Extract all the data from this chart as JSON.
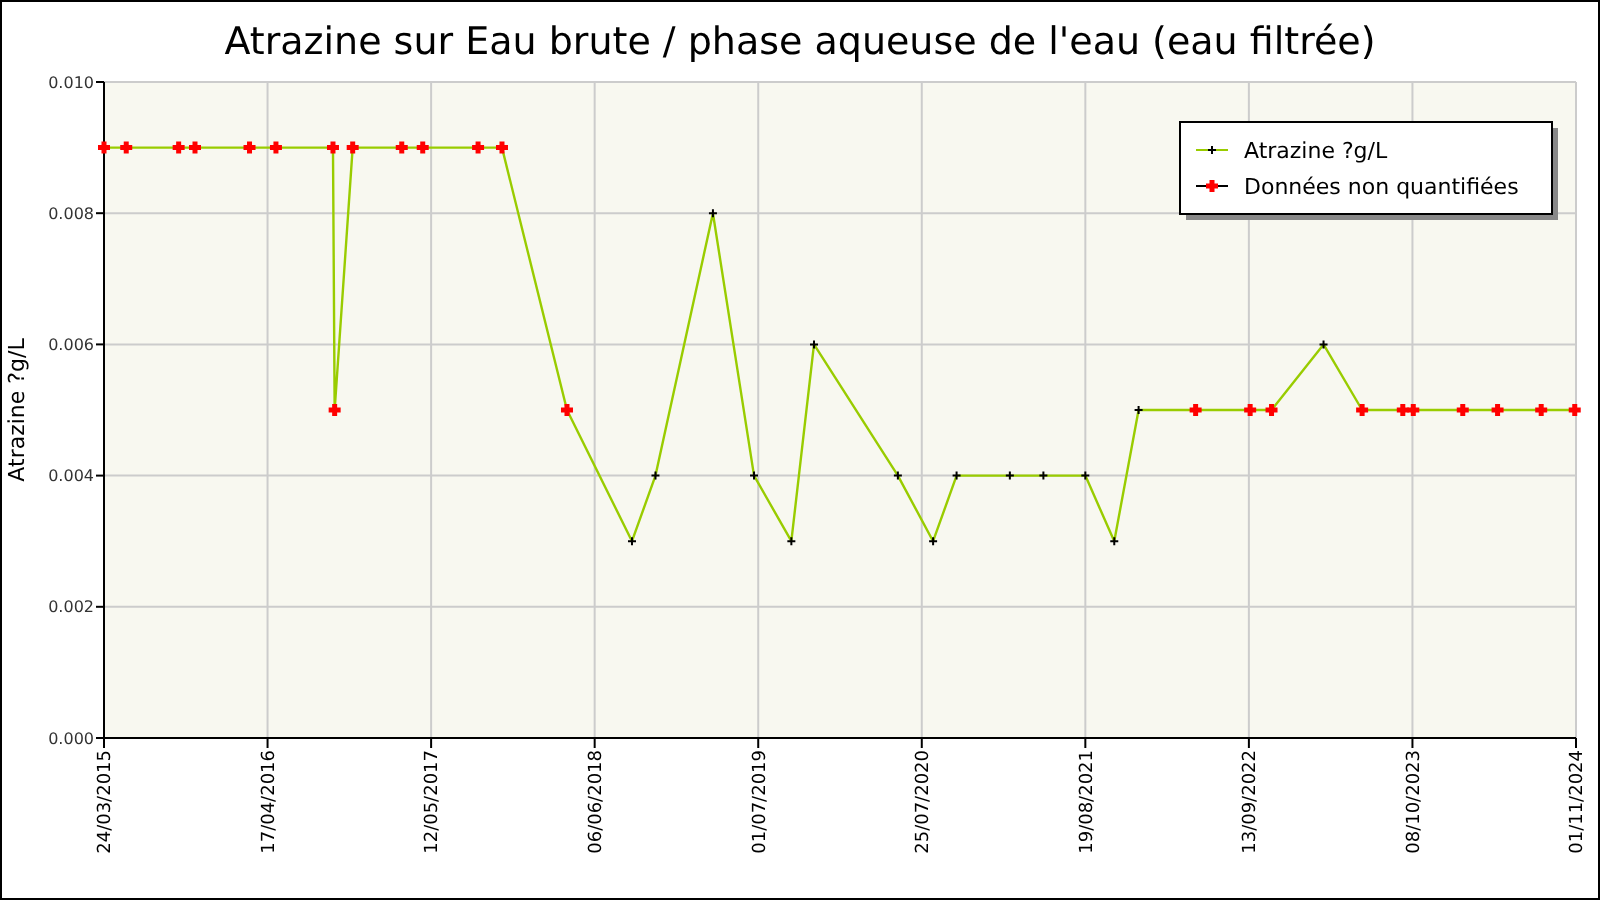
{
  "chart_data": {
    "type": "line",
    "title": "Atrazine sur Eau brute / phase aqueuse de l'eau (eau filtrée)",
    "ylabel": "Atrazine ?g/L",
    "xlim": [
      "2015-03-24",
      "2024-11-01"
    ],
    "xticks": [
      {
        "value": "2015-03-24",
        "label": "24/03/2015"
      },
      {
        "value": "2016-04-17",
        "label": "17/04/2016"
      },
      {
        "value": "2017-05-12",
        "label": "12/05/2017"
      },
      {
        "value": "2018-06-06",
        "label": "06/06/2018"
      },
      {
        "value": "2019-07-01",
        "label": "01/07/2019"
      },
      {
        "value": "2020-07-25",
        "label": "25/07/2020"
      },
      {
        "value": "2021-08-19",
        "label": "19/08/2021"
      },
      {
        "value": "2022-09-13",
        "label": "13/09/2022"
      },
      {
        "value": "2023-10-08",
        "label": "08/10/2023"
      },
      {
        "value": "2024-11-01",
        "label": "01/11/2024"
      }
    ],
    "ylim": [
      0,
      0.01
    ],
    "yticks": [
      {
        "value": 0,
        "label": "0.000"
      },
      {
        "value": 0.002,
        "label": "0.002"
      },
      {
        "value": 0.004,
        "label": "0.004"
      },
      {
        "value": 0.006,
        "label": "0.006"
      },
      {
        "value": 0.008,
        "label": "0.008"
      },
      {
        "value": 0.01,
        "label": "0.010"
      }
    ],
    "grid": true,
    "legend": "top right",
    "series": [
      {
        "name": "Atrazine ?g/L",
        "color": "#99cc00",
        "marker": "cross",
        "line_style": "solid",
        "x": [
          "2015-03-24",
          "2015-05-16",
          "2015-09-18",
          "2015-10-27",
          "2016-03-05",
          "2016-05-07",
          "2016-09-20",
          "2016-09-24",
          "2016-11-06",
          "2017-03-03",
          "2017-04-22",
          "2017-09-01",
          "2017-10-28",
          "2018-04-01",
          "2018-09-03",
          "2018-10-29",
          "2019-03-15",
          "2019-06-21",
          "2019-09-18",
          "2019-11-11",
          "2020-05-29",
          "2020-08-21",
          "2020-10-16",
          "2021-02-20",
          "2021-05-11",
          "2021-08-19",
          "2021-10-27",
          "2021-12-24",
          "2022-05-09",
          "2022-09-16",
          "2022-11-06",
          "2023-03-10",
          "2023-06-10",
          "2023-09-15",
          "2023-10-10",
          "2024-02-05",
          "2024-04-28",
          "2024-08-10",
          "2024-10-29"
        ],
        "values": [
          0.009,
          0.009,
          0.009,
          0.009,
          0.009,
          0.009,
          0.009,
          0.005,
          0.009,
          0.009,
          0.009,
          0.009,
          0.009,
          0.005,
          0.003,
          0.004,
          0.008,
          0.004,
          0.003,
          0.006,
          0.004,
          0.003,
          0.004,
          0.004,
          0.004,
          0.004,
          0.003,
          0.005,
          0.005,
          0.005,
          0.005,
          0.006,
          0.005,
          0.005,
          0.005,
          0.005,
          0.005,
          0.005,
          0.005
        ]
      },
      {
        "name": "Données non quantifiées",
        "type": "scatter",
        "color": "#ff0000",
        "marker": "cross",
        "x": [
          "2015-03-24",
          "2015-05-16",
          "2015-09-18",
          "2015-10-27",
          "2016-03-05",
          "2016-05-07",
          "2016-09-20",
          "2016-09-24",
          "2016-11-06",
          "2017-03-03",
          "2017-04-22",
          "2017-09-01",
          "2017-10-28",
          "2018-04-01",
          "2022-05-09",
          "2022-09-16",
          "2022-11-06",
          "2023-06-10",
          "2023-09-15",
          "2023-10-10",
          "2024-02-05",
          "2024-04-28",
          "2024-08-10",
          "2024-10-29"
        ],
        "values": [
          0.009,
          0.009,
          0.009,
          0.009,
          0.009,
          0.009,
          0.009,
          0.005,
          0.009,
          0.009,
          0.009,
          0.009,
          0.009,
          0.005,
          0.005,
          0.005,
          0.005,
          0.005,
          0.005,
          0.005,
          0.005,
          0.005,
          0.005,
          0.005
        ]
      }
    ]
  }
}
